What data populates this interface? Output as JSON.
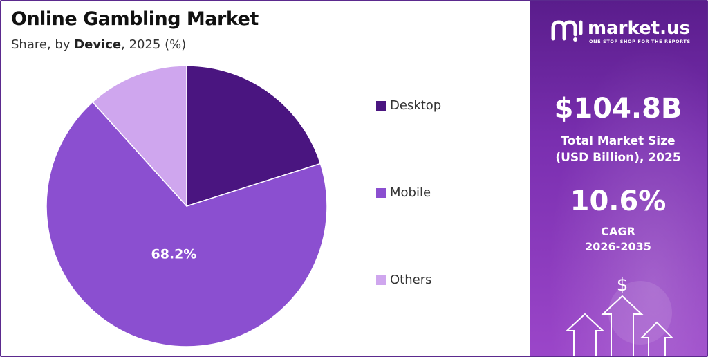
{
  "chart_data": {
    "type": "pie",
    "title": "Online Gambling Market",
    "subtitle_prefix": "Share, by ",
    "subtitle_bold": "Device",
    "subtitle_suffix": ", 2025 (%)",
    "slices": [
      {
        "name": "Desktop",
        "value": 20.1,
        "color": "#4a1580"
      },
      {
        "name": "Mobile",
        "value": 68.2,
        "color": "#8b4fd0"
      },
      {
        "name": "Others",
        "value": 11.7,
        "color": "#cfa6ee"
      }
    ],
    "data_labels": [
      {
        "series": "Mobile",
        "text": "68.2%"
      }
    ],
    "legend": "right",
    "start_angle_deg": 0,
    "direction": "clockwise"
  },
  "side_panel": {
    "brand_name": "market.us",
    "brand_tagline": "ONE STOP SHOP FOR THE REPORTS",
    "market_size": "$104.8B",
    "market_size_caption_1": "Total Market Size",
    "market_size_caption_2": "(USD Billion), 2025",
    "cagr": "10.6%",
    "cagr_caption_1": "CAGR",
    "cagr_caption_2": "2026-2035",
    "dollar_symbol": "$",
    "icon": "growth-arrows-icon"
  },
  "colors": {
    "frame": "#5b2a8e",
    "panel_top": "#5a1d8c",
    "panel_bottom": "#9b46c9"
  }
}
